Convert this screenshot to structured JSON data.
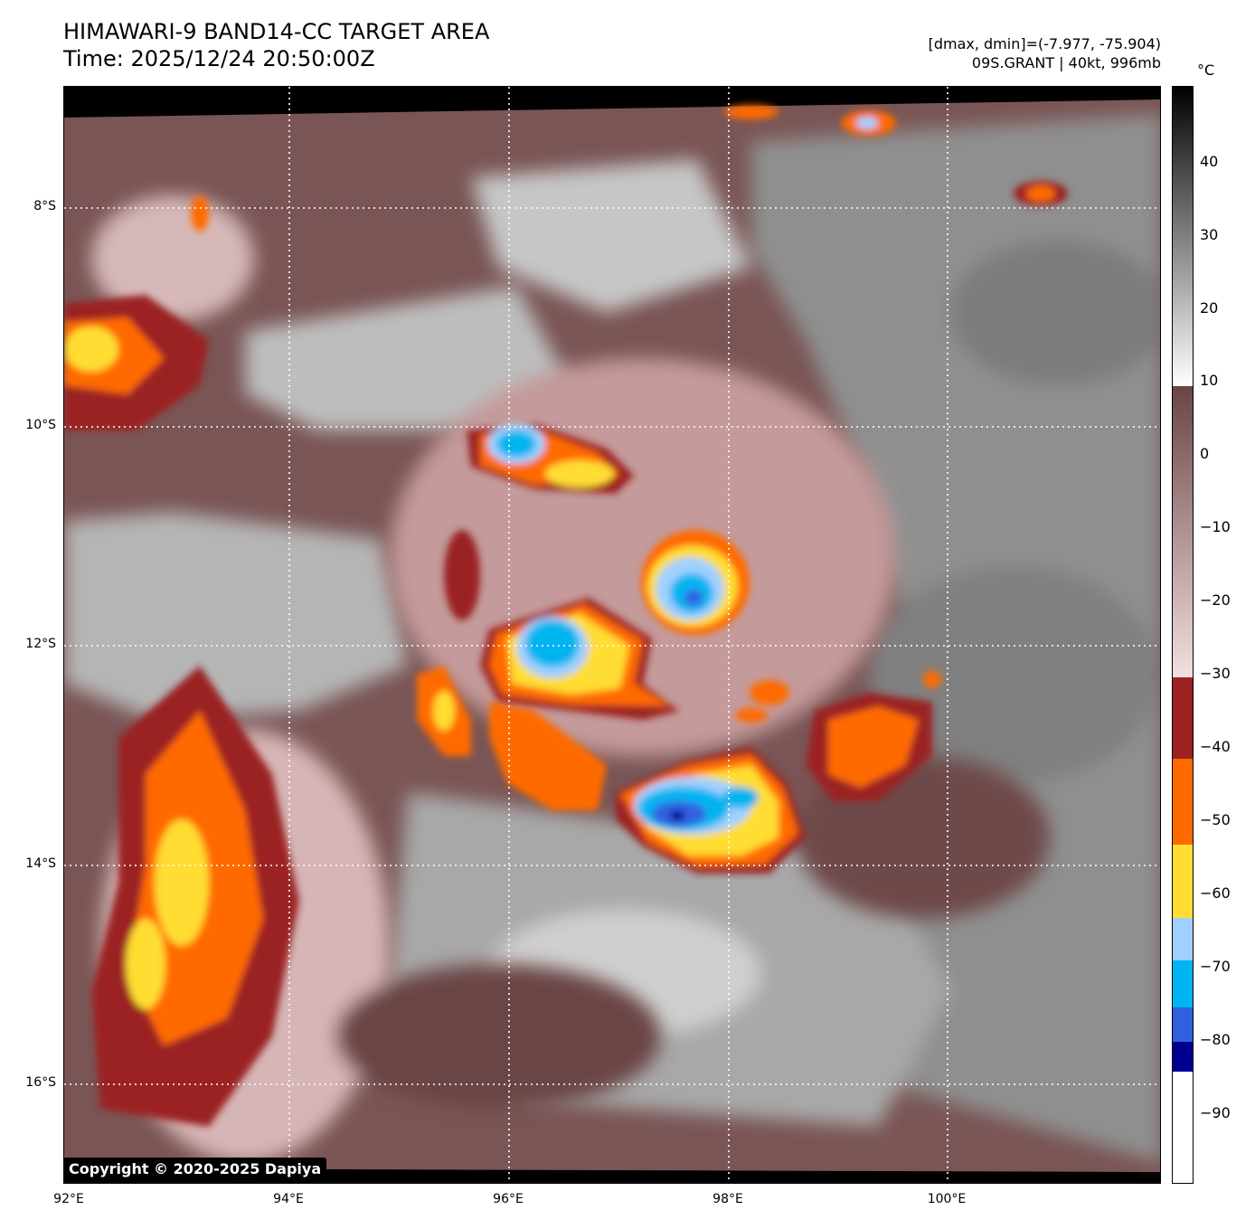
{
  "header": {
    "title_line1": "HIMAWARI-9 BAND14-CC TARGET AREA",
    "title_line2": "Time: 2025/12/24 20:50:00Z",
    "meta_line1": "[dmax, dmin]=(-7.977, -75.904)",
    "meta_line2": "09S.GRANT | 40kt, 996mb"
  },
  "map": {
    "lat_labels": [
      "8°S",
      "10°S",
      "12°S",
      "14°S",
      "16°S"
    ],
    "lon_labels": [
      "92°E",
      "94°E",
      "96°E",
      "98°E",
      "100°E"
    ],
    "copyright": "Copyright © 2020-2025 Dapiya"
  },
  "colorbar": {
    "unit": "°C",
    "ticks": [
      "40",
      "30",
      "20",
      "10",
      "0",
      "−10",
      "−20",
      "−30",
      "−40",
      "−50",
      "−60",
      "−70",
      "−80",
      "−90"
    ]
  },
  "colors": {
    "dark_red": "#9b2222",
    "orange": "#ff6a00",
    "yellow": "#ffdd33",
    "light_blue": "#a0d0ff",
    "cyan": "#00b4f0",
    "royal_blue": "#3060e0",
    "navy": "#000090",
    "mauve_dark": "#6e4a4a",
    "mauve_light": "#d8b8b8"
  }
}
